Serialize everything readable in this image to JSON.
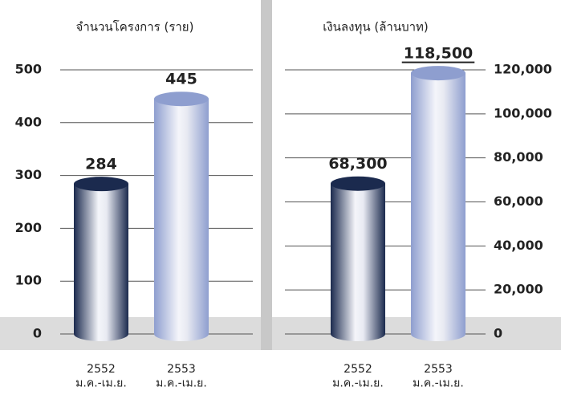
{
  "chart_data": [
    {
      "type": "cylinder-bar",
      "title": "จำนวนโครงการ (ราย)",
      "categories": [
        "2552\nม.ค.-เม.ย.",
        "2553\nม.ค.-เม.ย."
      ],
      "values": [
        284,
        445
      ],
      "colors": [
        "#1b2a4e",
        "#8e9ecf"
      ],
      "ylim": [
        0,
        500
      ],
      "yticks": [
        0,
        100,
        200,
        300,
        400,
        500
      ],
      "axis_side": "left",
      "grid": true
    },
    {
      "type": "cylinder-bar",
      "title": "เงินลงทุน (ล้านบาท)",
      "categories": [
        "2552\nม.ค.-เม.ย.",
        "2553\nม.ค.-เม.ย."
      ],
      "values": [
        68300,
        118500
      ],
      "value_labels": [
        "68,300",
        "118,500"
      ],
      "colors": [
        "#1b2a4e",
        "#8e9ecf"
      ],
      "ylim": [
        0,
        120000
      ],
      "yticks": [
        0,
        {
          "value": 20000,
          "label": "20,000"
        },
        {
          "value": 40000,
          "label": "40,000"
        },
        {
          "value": 60000,
          "label": "60,000"
        },
        {
          "value": 80000,
          "label": "80,000"
        },
        {
          "value": 100000,
          "label": "100,000"
        },
        {
          "value": 120000,
          "label": "120,000"
        }
      ],
      "axis_side": "right",
      "grid": true
    }
  ]
}
